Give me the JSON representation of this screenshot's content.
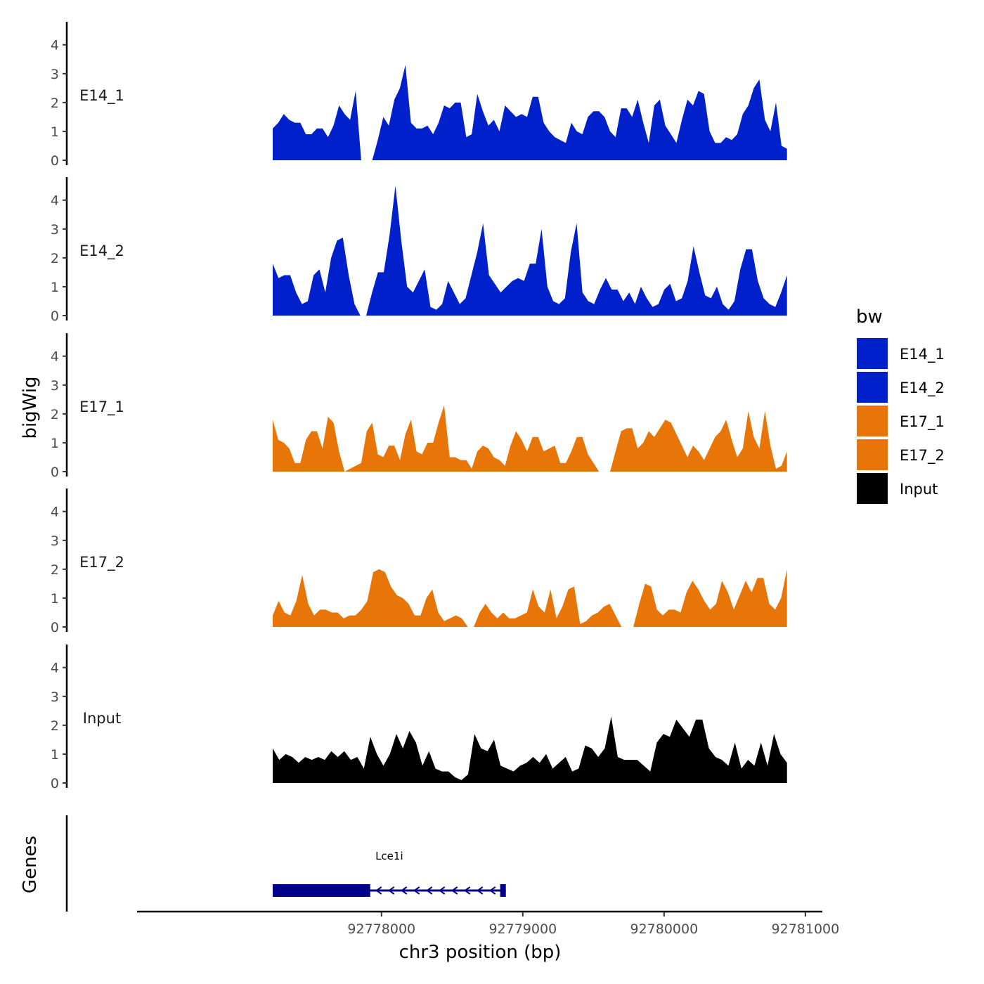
{
  "chart_data": {
    "type": "area",
    "ylabel": "bigWig",
    "xlabel": "chr3 position (bp)",
    "genes_label": "Genes",
    "xlim": [
      92776270,
      92781120
    ],
    "x_ticks": [
      92778000,
      92779000,
      92780000,
      92781000
    ],
    "x_tick_labels": [
      "92778000",
      "92779000",
      "92780000",
      "92781000"
    ],
    "ylim": [
      0,
      4.7
    ],
    "y_ticks": [
      0,
      1,
      2,
      3,
      4
    ],
    "y_tick_labels": [
      "0",
      "1",
      "2",
      "3",
      "4"
    ],
    "legend": {
      "title": "bw",
      "entries": [
        {
          "label": "E14_1",
          "color": "#0020CC"
        },
        {
          "label": "E14_2",
          "color": "#0020CC"
        },
        {
          "label": "E17_1",
          "color": "#E87508"
        },
        {
          "label": "E17_2",
          "color": "#E87508"
        },
        {
          "label": "Input",
          "color": "#000000"
        }
      ]
    },
    "series": [
      {
        "name": "E14_1",
        "color": "#0020CC",
        "x_start": 92777230,
        "x_end": 92780870,
        "values": [
          1.1,
          1.3,
          1.6,
          1.4,
          1.3,
          1.3,
          0.9,
          0.9,
          1.1,
          1.1,
          0.8,
          1.2,
          1.9,
          1.6,
          1.4,
          2.4,
          0.0,
          0.0,
          0.0,
          0.7,
          1.5,
          1.2,
          2.1,
          2.5,
          3.3,
          1.3,
          1.1,
          1.1,
          1.2,
          0.9,
          1.3,
          1.9,
          1.8,
          2.0,
          2.0,
          0.8,
          0.9,
          2.3,
          1.7,
          1.2,
          1.4,
          1.0,
          1.9,
          1.7,
          1.5,
          1.6,
          1.5,
          2.2,
          2.2,
          1.3,
          1.0,
          0.8,
          0.7,
          0.6,
          1.3,
          1.0,
          0.9,
          1.5,
          1.7,
          1.7,
          1.5,
          1.0,
          0.8,
          1.8,
          1.8,
          1.5,
          2.1,
          1.3,
          0.6,
          1.9,
          2.1,
          1.2,
          0.9,
          0.6,
          1.4,
          2.1,
          1.9,
          2.4,
          2.3,
          1.0,
          0.6,
          0.6,
          0.8,
          0.7,
          0.9,
          1.6,
          1.9,
          2.5,
          2.8,
          1.4,
          1.0,
          2.0,
          0.5,
          0.4
        ]
      },
      {
        "name": "E14_2",
        "color": "#0020CC",
        "x_start": 92777230,
        "x_end": 92780870,
        "values": [
          1.8,
          1.3,
          1.4,
          1.4,
          0.8,
          0.4,
          0.5,
          1.4,
          1.6,
          0.8,
          2.0,
          2.6,
          2.7,
          1.4,
          0.4,
          0.0,
          0.0,
          0.8,
          1.5,
          1.5,
          2.8,
          4.5,
          2.6,
          1.0,
          0.8,
          1.2,
          1.6,
          0.3,
          0.2,
          0.4,
          1.2,
          0.8,
          0.4,
          0.6,
          1.4,
          2.2,
          3.2,
          1.4,
          1.1,
          0.8,
          1.0,
          1.2,
          1.3,
          1.2,
          1.8,
          1.8,
          3.0,
          1.0,
          0.5,
          0.4,
          0.6,
          2.2,
          3.2,
          0.8,
          0.5,
          0.4,
          0.9,
          1.3,
          0.9,
          0.9,
          0.5,
          0.8,
          0.4,
          1.0,
          0.6,
          0.3,
          0.4,
          0.9,
          1.1,
          0.5,
          0.6,
          1.2,
          2.4,
          1.5,
          0.7,
          0.6,
          1.0,
          0.4,
          0.2,
          0.5,
          1.6,
          2.3,
          2.3,
          1.2,
          0.6,
          0.4,
          0.3,
          0.8,
          1.4
        ]
      },
      {
        "name": "E17_1",
        "color": "#E87508",
        "x_start": 92777230,
        "x_end": 92780870,
        "values": [
          1.8,
          1.1,
          1.0,
          0.8,
          0.3,
          0.3,
          1.1,
          1.4,
          1.4,
          0.8,
          1.9,
          1.7,
          0.7,
          0.0,
          0.1,
          0.2,
          0.3,
          1.4,
          1.7,
          0.6,
          0.5,
          0.9,
          0.9,
          0.4,
          1.3,
          1.8,
          0.7,
          0.6,
          1.0,
          1.0,
          1.7,
          2.3,
          0.5,
          0.5,
          0.4,
          0.4,
          0.1,
          0.7,
          0.9,
          0.8,
          0.5,
          0.4,
          0.2,
          0.9,
          1.4,
          1.1,
          0.7,
          1.2,
          1.2,
          0.7,
          0.8,
          0.9,
          0.3,
          0.3,
          0.7,
          1.2,
          1.2,
          0.6,
          0.3,
          0.0,
          0.0,
          0.0,
          0.7,
          1.4,
          1.5,
          1.5,
          0.8,
          1.0,
          1.4,
          1.2,
          1.5,
          1.8,
          1.7,
          1.3,
          0.9,
          0.5,
          0.9,
          0.7,
          0.4,
          0.8,
          1.2,
          1.4,
          1.8,
          1.1,
          0.5,
          0.8,
          2.1,
          1.2,
          0.8,
          2.1,
          0.9,
          0.1,
          0.2,
          0.7
        ]
      },
      {
        "name": "E17_2",
        "color": "#E87508",
        "x_start": 92777230,
        "x_end": 92780870,
        "values": [
          0.4,
          0.9,
          0.5,
          0.4,
          0.9,
          1.8,
          0.8,
          0.4,
          0.6,
          0.6,
          0.5,
          0.5,
          0.3,
          0.4,
          0.4,
          0.6,
          0.9,
          1.9,
          2.0,
          1.9,
          1.4,
          1.1,
          1.0,
          0.8,
          0.4,
          0.4,
          1.0,
          1.3,
          0.5,
          0.2,
          0.3,
          0.4,
          0.3,
          0.0,
          0.0,
          0.5,
          0.8,
          0.5,
          0.3,
          0.5,
          0.3,
          0.3,
          0.4,
          0.5,
          1.3,
          0.7,
          0.5,
          1.3,
          0.3,
          0.7,
          1.3,
          1.4,
          0.1,
          0.2,
          0.4,
          0.5,
          0.7,
          0.8,
          0.4,
          0.0,
          0.0,
          0.0,
          0.8,
          1.5,
          1.4,
          0.6,
          0.4,
          0.6,
          0.6,
          0.5,
          1.2,
          1.6,
          1.3,
          0.9,
          0.6,
          0.8,
          1.6,
          1.2,
          0.6,
          1.1,
          1.6,
          1.2,
          1.7,
          1.7,
          0.8,
          0.6,
          1.0,
          2.0
        ]
      },
      {
        "name": "Input",
        "color": "#000000",
        "x_start": 92777230,
        "x_end": 92780870,
        "values": [
          1.2,
          0.8,
          1.0,
          0.9,
          0.7,
          0.9,
          0.8,
          0.9,
          0.8,
          1.1,
          0.9,
          1.1,
          0.8,
          0.9,
          0.5,
          1.6,
          1.0,
          0.6,
          1.0,
          1.7,
          1.2,
          1.8,
          1.4,
          0.6,
          1.1,
          0.5,
          0.4,
          0.4,
          0.2,
          0.1,
          0.3,
          1.7,
          1.2,
          1.1,
          1.5,
          0.6,
          0.5,
          0.4,
          0.6,
          0.7,
          0.9,
          0.7,
          1.0,
          0.5,
          0.7,
          0.9,
          0.4,
          0.5,
          1.3,
          1.2,
          0.9,
          1.2,
          2.3,
          0.9,
          0.8,
          0.8,
          0.8,
          0.6,
          0.4,
          1.4,
          1.7,
          1.6,
          2.2,
          1.9,
          1.6,
          2.2,
          2.2,
          1.2,
          0.9,
          0.8,
          0.6,
          1.4,
          0.5,
          0.8,
          0.6,
          1.4,
          0.6,
          1.7,
          1.0,
          0.7
        ]
      }
    ],
    "genes": [
      {
        "name": "Lce1i",
        "start": 92777230,
        "end": 92778880,
        "strand": "-",
        "exons": [
          [
            92777230,
            92777920
          ],
          [
            92778840,
            92778880
          ]
        ]
      }
    ]
  }
}
